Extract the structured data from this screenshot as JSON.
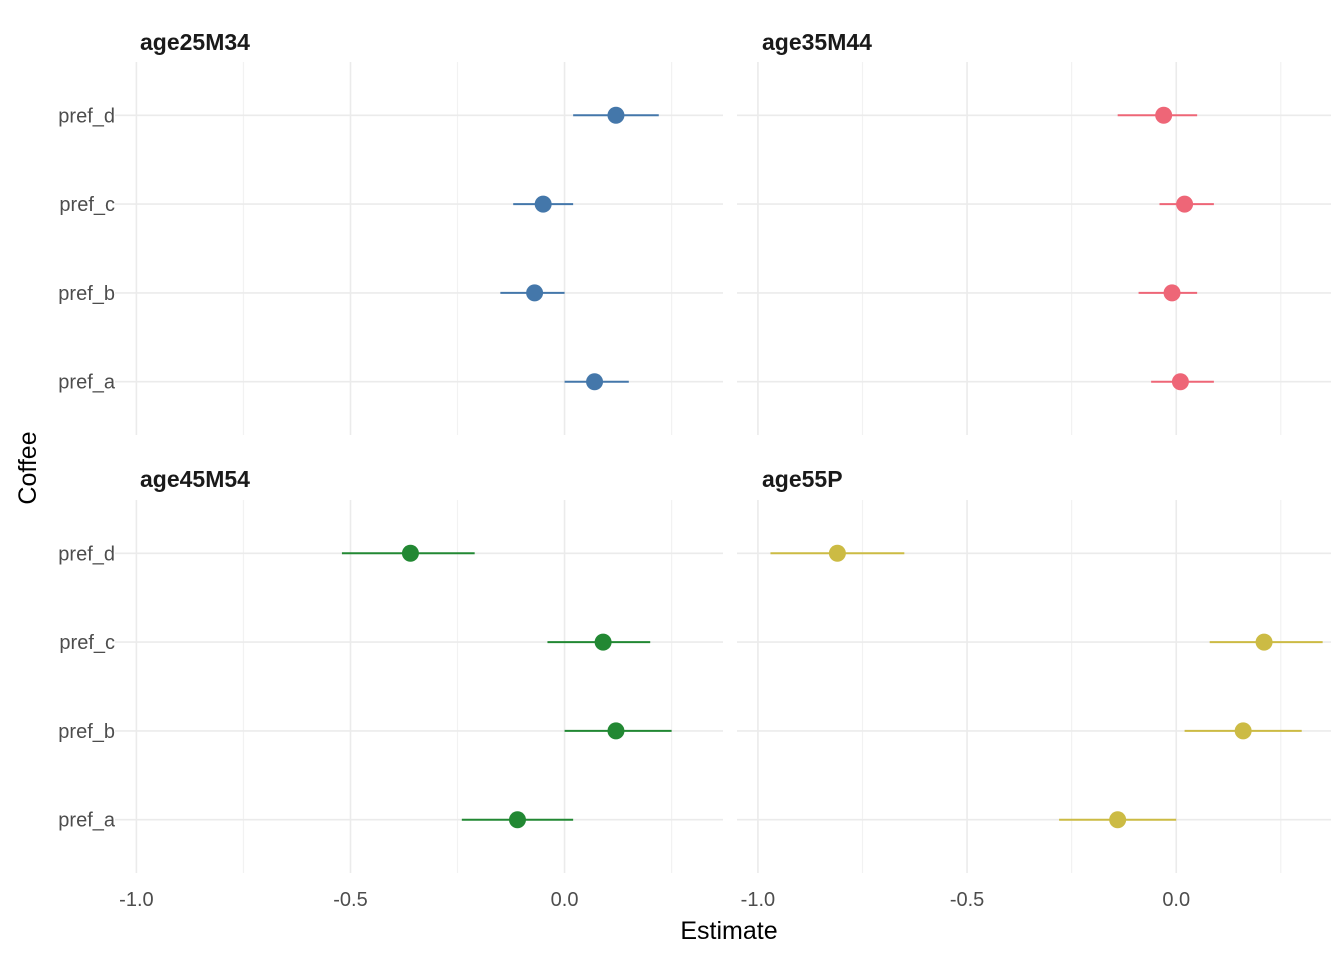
{
  "chart_data": {
    "type": "dot-errorbar",
    "xlabel": "Estimate",
    "ylabel": "Coffee",
    "xlim": [
      -1.05,
      0.37
    ],
    "x_ticks": [
      -1.0,
      -0.5,
      0.0
    ],
    "x_tick_labels": [
      "-1.0",
      "-0.5",
      "0.0"
    ],
    "categories": [
      "pref_a",
      "pref_b",
      "pref_c",
      "pref_d"
    ],
    "grid": true,
    "legend": "none",
    "panels": [
      {
        "name": "age25M34",
        "color": "#4477AA",
        "points": [
          {
            "category": "pref_a",
            "estimate": 0.07,
            "lower": 0.0,
            "upper": 0.15
          },
          {
            "category": "pref_b",
            "estimate": -0.07,
            "lower": -0.15,
            "upper": 0.0
          },
          {
            "category": "pref_c",
            "estimate": -0.05,
            "lower": -0.12,
            "upper": 0.02
          },
          {
            "category": "pref_d",
            "estimate": 0.12,
            "lower": 0.02,
            "upper": 0.22
          }
        ]
      },
      {
        "name": "age35M44",
        "color": "#EE6677",
        "points": [
          {
            "category": "pref_a",
            "estimate": 0.01,
            "lower": -0.06,
            "upper": 0.09
          },
          {
            "category": "pref_b",
            "estimate": -0.01,
            "lower": -0.09,
            "upper": 0.05
          },
          {
            "category": "pref_c",
            "estimate": 0.02,
            "lower": -0.04,
            "upper": 0.09
          },
          {
            "category": "pref_d",
            "estimate": -0.03,
            "lower": -0.14,
            "upper": 0.05
          }
        ]
      },
      {
        "name": "age45M54",
        "color": "#228833",
        "points": [
          {
            "category": "pref_a",
            "estimate": -0.11,
            "lower": -0.24,
            "upper": 0.02
          },
          {
            "category": "pref_b",
            "estimate": 0.12,
            "lower": 0.0,
            "upper": 0.25
          },
          {
            "category": "pref_c",
            "estimate": 0.09,
            "lower": -0.04,
            "upper": 0.2
          },
          {
            "category": "pref_d",
            "estimate": -0.36,
            "lower": -0.52,
            "upper": -0.21
          }
        ]
      },
      {
        "name": "age55P",
        "color": "#CCBB44",
        "points": [
          {
            "category": "pref_a",
            "estimate": -0.14,
            "lower": -0.28,
            "upper": 0.0
          },
          {
            "category": "pref_b",
            "estimate": 0.16,
            "lower": 0.02,
            "upper": 0.3
          },
          {
            "category": "pref_c",
            "estimate": 0.21,
            "lower": 0.08,
            "upper": 0.35
          },
          {
            "category": "pref_d",
            "estimate": -0.81,
            "lower": -0.97,
            "upper": -0.65
          }
        ]
      }
    ]
  }
}
